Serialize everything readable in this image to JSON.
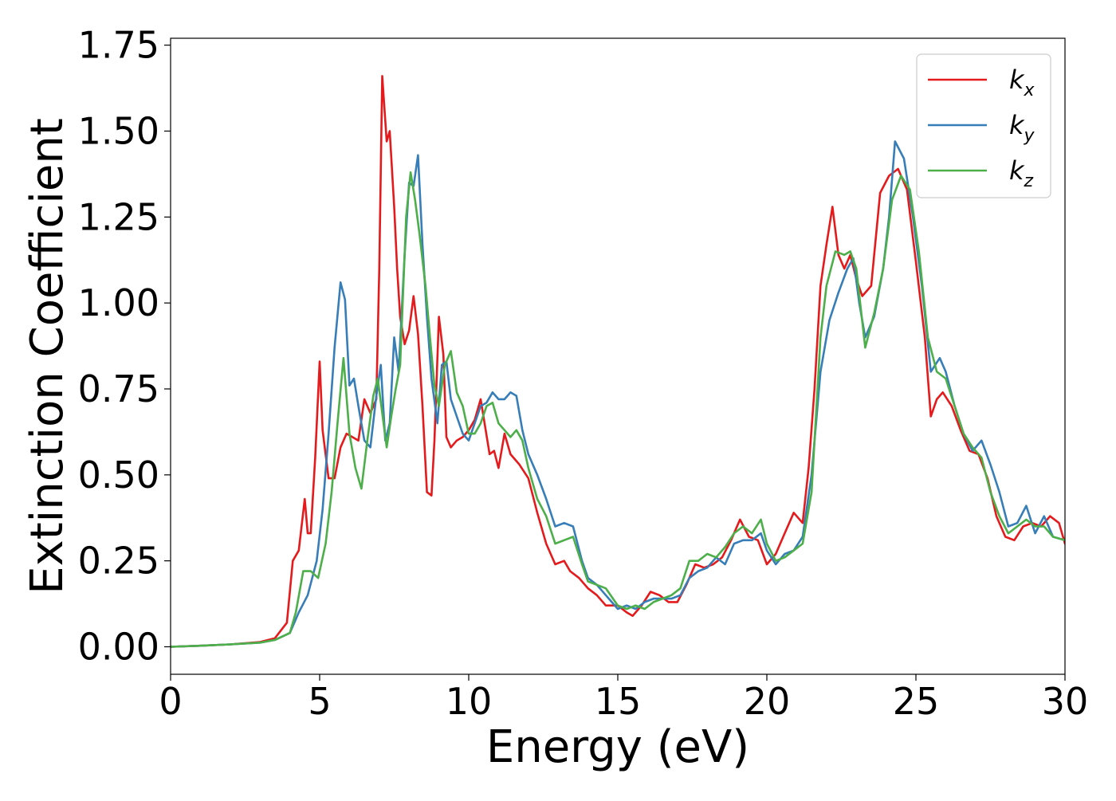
{
  "chart_data": {
    "type": "line",
    "title": "",
    "xlabel": "Energy (eV)",
    "ylabel": "Extinction Coefficient",
    "xlim": [
      0,
      30
    ],
    "ylim": [
      -0.08,
      1.77
    ],
    "xticks": [
      0,
      5,
      10,
      15,
      20,
      25,
      30
    ],
    "xtick_labels": [
      "0",
      "5",
      "10",
      "15",
      "20",
      "25",
      "30"
    ],
    "yticks": [
      0.0,
      0.25,
      0.5,
      0.75,
      1.0,
      1.25,
      1.5,
      1.75
    ],
    "ytick_labels": [
      "0.00",
      "0.25",
      "0.50",
      "0.75",
      "1.00",
      "1.25",
      "1.50",
      "1.75"
    ],
    "grid": false,
    "legend_position": "top-right",
    "series": [
      {
        "name": "k_x",
        "label_main": "k",
        "label_sub": "x",
        "color": "#e41a1c",
        "x": [
          0,
          1,
          2,
          3,
          3.5,
          3.9,
          4.1,
          4.3,
          4.5,
          4.6,
          4.7,
          4.85,
          5.0,
          5.1,
          5.3,
          5.5,
          5.7,
          5.9,
          6.1,
          6.3,
          6.5,
          6.7,
          6.9,
          7.0,
          7.1,
          7.25,
          7.35,
          7.5,
          7.6,
          7.7,
          7.85,
          8.0,
          8.15,
          8.3,
          8.45,
          8.6,
          8.75,
          8.85,
          9.0,
          9.15,
          9.25,
          9.4,
          9.6,
          9.8,
          10.0,
          10.2,
          10.4,
          10.55,
          10.7,
          10.85,
          11.0,
          11.2,
          11.4,
          11.7,
          12.0,
          12.3,
          12.6,
          12.9,
          13.2,
          13.4,
          13.7,
          14.0,
          14.3,
          14.6,
          15.0,
          15.3,
          15.5,
          15.8,
          16.1,
          16.4,
          16.7,
          17.0,
          17.3,
          17.6,
          17.9,
          18.2,
          18.5,
          18.8,
          19.1,
          19.4,
          19.7,
          20.0,
          20.3,
          20.6,
          20.9,
          21.2,
          21.4,
          21.6,
          21.8,
          22.0,
          22.2,
          22.4,
          22.6,
          22.8,
          23.0,
          23.2,
          23.5,
          23.8,
          24.1,
          24.4,
          24.7,
          25.0,
          25.3,
          25.5,
          25.7,
          25.9,
          26.2,
          26.5,
          26.8,
          27.1,
          27.4,
          27.7,
          28.0,
          28.3,
          28.6,
          28.9,
          29.2,
          29.5,
          29.8,
          30.0
        ],
        "y": [
          0.0,
          0.003,
          0.007,
          0.014,
          0.025,
          0.07,
          0.25,
          0.28,
          0.43,
          0.33,
          0.33,
          0.55,
          0.83,
          0.63,
          0.49,
          0.49,
          0.58,
          0.62,
          0.61,
          0.6,
          0.72,
          0.68,
          0.72,
          1.1,
          1.66,
          1.47,
          1.5,
          1.28,
          1.1,
          0.96,
          0.88,
          0.92,
          1.02,
          0.91,
          0.7,
          0.45,
          0.44,
          0.6,
          0.96,
          0.85,
          0.61,
          0.58,
          0.6,
          0.61,
          0.63,
          0.66,
          0.72,
          0.64,
          0.56,
          0.57,
          0.52,
          0.62,
          0.56,
          0.53,
          0.49,
          0.39,
          0.3,
          0.24,
          0.25,
          0.22,
          0.2,
          0.17,
          0.15,
          0.12,
          0.12,
          0.1,
          0.09,
          0.12,
          0.16,
          0.15,
          0.13,
          0.13,
          0.18,
          0.24,
          0.23,
          0.24,
          0.26,
          0.31,
          0.37,
          0.32,
          0.31,
          0.24,
          0.27,
          0.33,
          0.39,
          0.36,
          0.52,
          0.75,
          1.05,
          1.17,
          1.28,
          1.14,
          1.1,
          1.14,
          1.07,
          1.02,
          1.05,
          1.32,
          1.37,
          1.39,
          1.33,
          1.12,
          0.9,
          0.67,
          0.72,
          0.74,
          0.7,
          0.63,
          0.57,
          0.56,
          0.49,
          0.38,
          0.32,
          0.31,
          0.35,
          0.36,
          0.35,
          0.38,
          0.36,
          0.3
        ]
      },
      {
        "name": "k_y",
        "label_main": "k",
        "label_sub": "y",
        "color": "#377eb8",
        "x": [
          0,
          1,
          2,
          3,
          3.5,
          4.0,
          4.3,
          4.6,
          4.9,
          5.1,
          5.3,
          5.5,
          5.7,
          5.85,
          6.0,
          6.15,
          6.3,
          6.5,
          6.7,
          6.9,
          7.05,
          7.2,
          7.35,
          7.5,
          7.65,
          7.85,
          8.0,
          8.15,
          8.3,
          8.45,
          8.6,
          8.75,
          8.95,
          9.1,
          9.25,
          9.4,
          9.6,
          9.8,
          10.0,
          10.2,
          10.4,
          10.6,
          10.8,
          11.0,
          11.2,
          11.4,
          11.6,
          11.8,
          12.0,
          12.3,
          12.6,
          12.9,
          13.2,
          13.5,
          13.8,
          14.0,
          14.3,
          14.6,
          15.0,
          15.3,
          15.6,
          15.9,
          16.2,
          16.5,
          16.8,
          17.1,
          17.4,
          17.7,
          18.0,
          18.3,
          18.6,
          18.9,
          19.2,
          19.5,
          19.8,
          20.0,
          20.3,
          20.6,
          20.9,
          21.2,
          21.5,
          21.8,
          22.1,
          22.4,
          22.7,
          22.9,
          23.1,
          23.3,
          23.6,
          23.9,
          24.1,
          24.3,
          24.6,
          24.9,
          25.2,
          25.5,
          25.8,
          26.0,
          26.3,
          26.6,
          26.9,
          27.2,
          27.5,
          27.8,
          28.1,
          28.4,
          28.7,
          29.0,
          29.3,
          29.6,
          30.0
        ],
        "y": [
          0.0,
          0.003,
          0.007,
          0.012,
          0.02,
          0.04,
          0.1,
          0.15,
          0.25,
          0.4,
          0.62,
          0.87,
          1.06,
          1.01,
          0.76,
          0.78,
          0.7,
          0.6,
          0.58,
          0.73,
          0.82,
          0.6,
          0.65,
          0.9,
          0.8,
          1.14,
          1.35,
          1.34,
          1.43,
          1.17,
          0.96,
          0.78,
          0.65,
          0.82,
          0.83,
          0.72,
          0.67,
          0.62,
          0.6,
          0.65,
          0.7,
          0.71,
          0.74,
          0.72,
          0.72,
          0.74,
          0.73,
          0.63,
          0.56,
          0.5,
          0.43,
          0.35,
          0.36,
          0.35,
          0.25,
          0.2,
          0.18,
          0.15,
          0.11,
          0.12,
          0.11,
          0.13,
          0.14,
          0.14,
          0.14,
          0.15,
          0.2,
          0.22,
          0.23,
          0.26,
          0.24,
          0.3,
          0.31,
          0.31,
          0.33,
          0.28,
          0.24,
          0.27,
          0.28,
          0.32,
          0.5,
          0.8,
          0.95,
          1.03,
          1.1,
          1.13,
          1.0,
          0.9,
          0.96,
          1.1,
          1.25,
          1.47,
          1.42,
          1.25,
          1.05,
          0.8,
          0.84,
          0.8,
          0.7,
          0.62,
          0.57,
          0.6,
          0.53,
          0.45,
          0.35,
          0.36,
          0.41,
          0.33,
          0.38,
          0.32,
          0.31
        ]
      },
      {
        "name": "k_z",
        "label_main": "k",
        "label_sub": "z",
        "color": "#4daf4a",
        "x": [
          0,
          1,
          2,
          3,
          3.5,
          4.0,
          4.2,
          4.45,
          4.7,
          4.95,
          5.2,
          5.4,
          5.6,
          5.8,
          6.0,
          6.2,
          6.4,
          6.6,
          6.8,
          6.95,
          7.1,
          7.25,
          7.4,
          7.55,
          7.7,
          7.9,
          8.05,
          8.2,
          8.35,
          8.55,
          8.7,
          8.85,
          9.0,
          9.2,
          9.4,
          9.6,
          9.8,
          10.0,
          10.2,
          10.4,
          10.6,
          10.8,
          11.0,
          11.2,
          11.4,
          11.6,
          11.8,
          12.0,
          12.3,
          12.6,
          12.9,
          13.2,
          13.5,
          13.8,
          14.0,
          14.3,
          14.6,
          15.0,
          15.3,
          15.6,
          15.9,
          16.2,
          16.5,
          16.8,
          17.1,
          17.4,
          17.7,
          18.0,
          18.3,
          18.6,
          18.9,
          19.2,
          19.5,
          19.8,
          20.0,
          20.3,
          20.6,
          20.9,
          21.2,
          21.5,
          21.8,
          22.0,
          22.3,
          22.6,
          22.8,
          23.0,
          23.3,
          23.6,
          23.9,
          24.2,
          24.5,
          24.8,
          25.1,
          25.4,
          25.7,
          26.0,
          26.3,
          26.6,
          26.9,
          27.2,
          27.5,
          27.8,
          28.1,
          28.4,
          28.7,
          29.0,
          29.3,
          29.6,
          30.0
        ],
        "y": [
          0.0,
          0.003,
          0.007,
          0.012,
          0.02,
          0.04,
          0.1,
          0.22,
          0.22,
          0.2,
          0.3,
          0.45,
          0.65,
          0.84,
          0.62,
          0.52,
          0.46,
          0.6,
          0.73,
          0.78,
          0.68,
          0.58,
          0.67,
          0.75,
          0.82,
          1.25,
          1.38,
          1.3,
          1.2,
          1.05,
          0.9,
          0.76,
          0.7,
          0.82,
          0.86,
          0.74,
          0.7,
          0.62,
          0.62,
          0.65,
          0.7,
          0.71,
          0.65,
          0.63,
          0.61,
          0.63,
          0.6,
          0.52,
          0.43,
          0.38,
          0.3,
          0.31,
          0.32,
          0.24,
          0.19,
          0.18,
          0.17,
          0.12,
          0.11,
          0.12,
          0.11,
          0.13,
          0.14,
          0.15,
          0.17,
          0.25,
          0.25,
          0.27,
          0.26,
          0.29,
          0.33,
          0.35,
          0.33,
          0.37,
          0.3,
          0.25,
          0.26,
          0.28,
          0.3,
          0.45,
          0.9,
          1.05,
          1.15,
          1.14,
          1.15,
          1.1,
          0.87,
          0.97,
          1.1,
          1.3,
          1.37,
          1.33,
          1.15,
          0.9,
          0.8,
          0.78,
          0.7,
          0.62,
          0.58,
          0.55,
          0.45,
          0.38,
          0.33,
          0.35,
          0.37,
          0.35,
          0.35,
          0.32,
          0.31
        ]
      }
    ]
  }
}
